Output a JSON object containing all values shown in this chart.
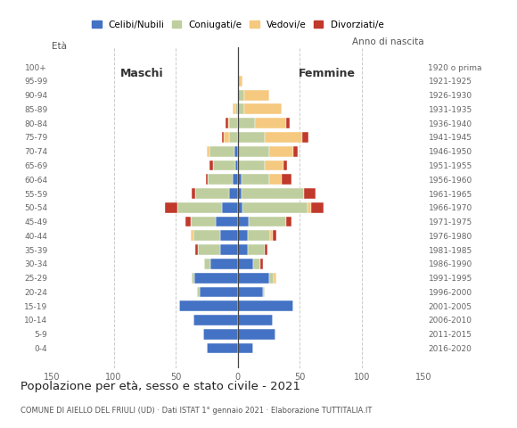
{
  "age_groups": [
    "0-4",
    "5-9",
    "10-14",
    "15-19",
    "20-24",
    "25-29",
    "30-34",
    "35-39",
    "40-44",
    "45-49",
    "50-54",
    "55-59",
    "60-64",
    "65-69",
    "70-74",
    "75-79",
    "80-84",
    "85-89",
    "90-94",
    "95-99",
    "100+"
  ],
  "birth_years": [
    "2016-2020",
    "2011-2015",
    "2006-2010",
    "2001-2005",
    "1996-2000",
    "1991-1995",
    "1986-1990",
    "1981-1985",
    "1976-1980",
    "1971-1975",
    "1966-1970",
    "1961-1965",
    "1956-1960",
    "1951-1955",
    "1946-1950",
    "1941-1945",
    "1936-1940",
    "1931-1935",
    "1926-1930",
    "1921-1925",
    "1920 o prima"
  ],
  "male": {
    "celibi": [
      25,
      28,
      36,
      47,
      31,
      35,
      22,
      14,
      14,
      18,
      13,
      7,
      4,
      2,
      3,
      0,
      0,
      0,
      0,
      0,
      0
    ],
    "coniugati": [
      0,
      0,
      0,
      0,
      2,
      2,
      5,
      18,
      22,
      20,
      36,
      27,
      20,
      18,
      20,
      7,
      7,
      2,
      0,
      0,
      0
    ],
    "vedovi": [
      0,
      0,
      0,
      0,
      0,
      0,
      0,
      0,
      2,
      0,
      0,
      0,
      0,
      0,
      2,
      4,
      1,
      2,
      0,
      0,
      0
    ],
    "divorziati": [
      0,
      0,
      0,
      0,
      0,
      0,
      0,
      2,
      0,
      4,
      10,
      3,
      2,
      3,
      0,
      2,
      2,
      0,
      0,
      0,
      0
    ]
  },
  "female": {
    "nubili": [
      12,
      30,
      28,
      45,
      20,
      25,
      12,
      8,
      8,
      9,
      4,
      3,
      3,
      0,
      0,
      0,
      0,
      0,
      0,
      0,
      0
    ],
    "coniugate": [
      0,
      0,
      0,
      0,
      2,
      4,
      6,
      14,
      18,
      30,
      52,
      50,
      22,
      22,
      25,
      22,
      14,
      5,
      5,
      0,
      0
    ],
    "vedove": [
      0,
      0,
      0,
      0,
      0,
      2,
      0,
      0,
      2,
      0,
      3,
      0,
      10,
      15,
      20,
      30,
      25,
      30,
      20,
      4,
      0
    ],
    "divorziate": [
      0,
      0,
      0,
      0,
      0,
      0,
      2,
      2,
      3,
      4,
      10,
      10,
      8,
      3,
      3,
      5,
      3,
      0,
      0,
      0,
      0
    ]
  },
  "colors": {
    "celibi_nubili": "#4472C4",
    "coniugati_e": "#BFCE9E",
    "vedovi_e": "#F5C97F",
    "divorziati_e": "#C0392B"
  },
  "xlim": 150,
  "title": "Popolazione per età, sesso e stato civile - 2021",
  "subtitle": "COMUNE DI AIELLO DEL FRIULI (UD) · Dati ISTAT 1° gennaio 2021 · Elaborazione TUTTITALIA.IT",
  "legend_labels": [
    "Celibi/Nubili",
    "Coniugati/e",
    "Vedovi/e",
    "Divorziati/e"
  ],
  "ylabel_left": "Età",
  "ylabel_right": "Anno di nascita",
  "label_maschi": "Maschi",
  "label_femmine": "Femmine",
  "background_color": "#ffffff",
  "bar_height": 0.75
}
